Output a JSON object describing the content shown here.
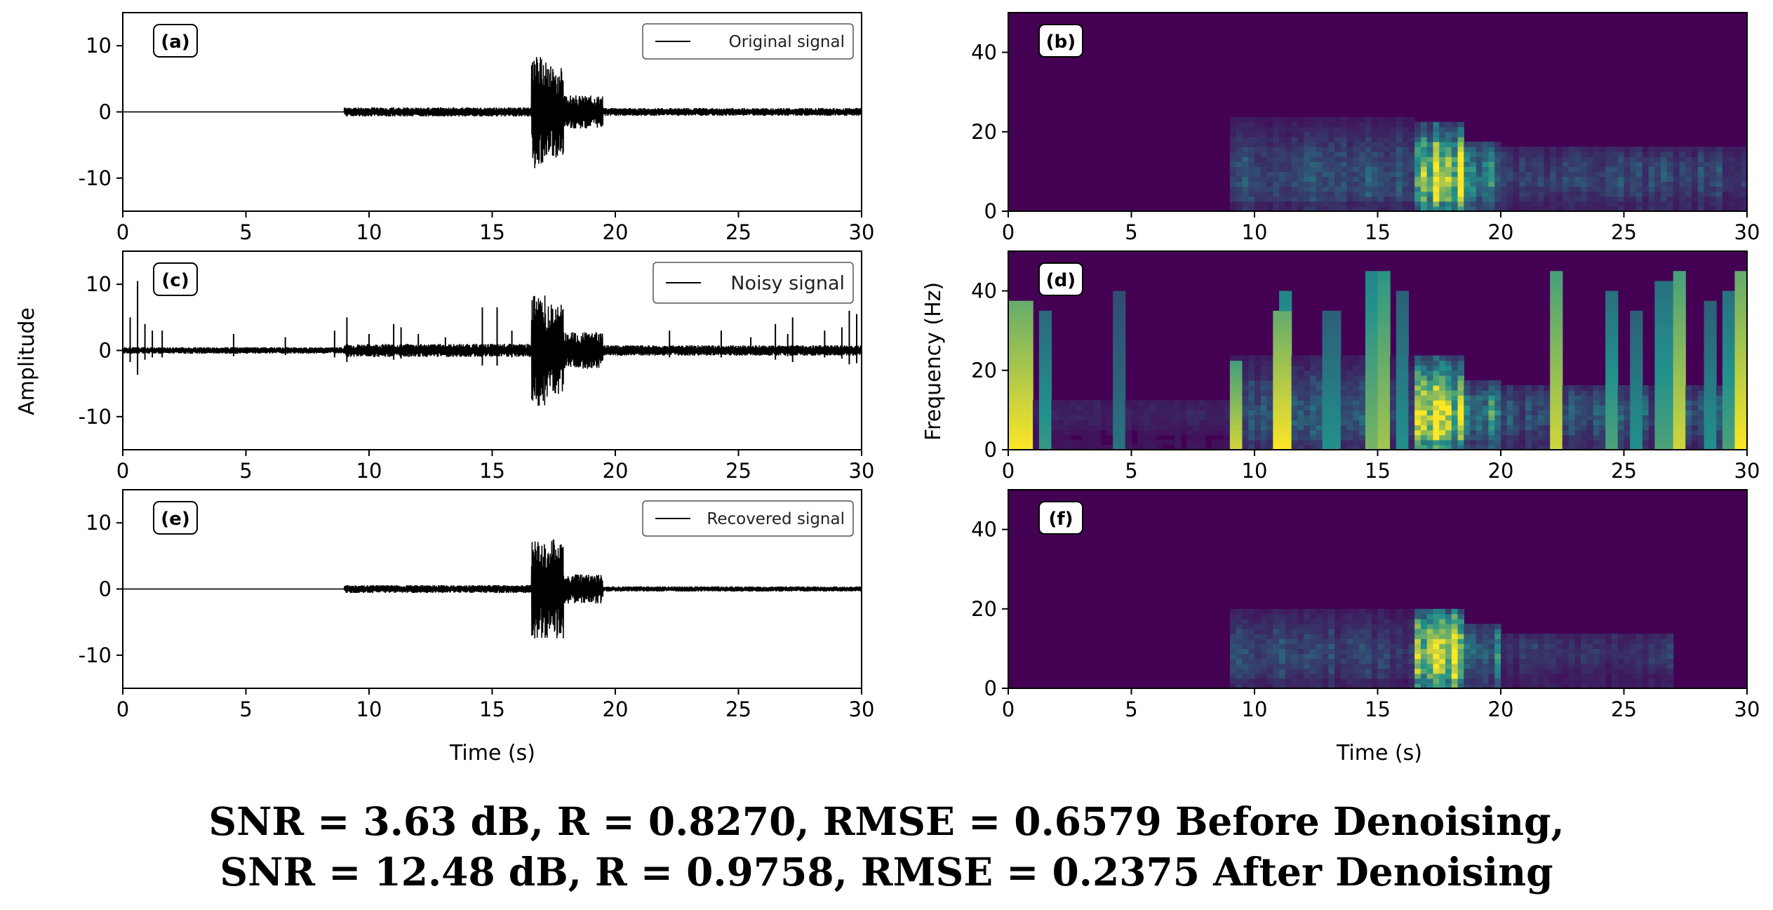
{
  "figure": {
    "ylabel_left": "Amplitude",
    "ylabel_right": "Frequency (Hz)",
    "xlabel": "Time (s)",
    "colors": {
      "signal": "#000000",
      "low": "#440154",
      "mid": "#21918c",
      "high": "#fde725"
    }
  },
  "chart_data": [
    {
      "id": "a",
      "type": "line",
      "panel_label": "(a)",
      "legend": "Original signal",
      "legend_position": "upper-right",
      "xlim": [
        0,
        30
      ],
      "ylim": [
        -15,
        15
      ],
      "xticks": [
        0,
        5,
        10,
        15,
        20,
        25,
        30
      ],
      "yticks": [
        -10,
        0,
        10
      ],
      "series": [
        {
          "name": "Original signal",
          "color": "#000000",
          "bursts": [
            {
              "t0": 9.0,
              "t1": 16.6,
              "amp": 0.7,
              "seed": 11
            },
            {
              "t0": 16.6,
              "t1": 17.2,
              "amp": 8.5,
              "seed": 12
            },
            {
              "t0": 17.2,
              "t1": 17.9,
              "amp": 7.0,
              "seed": 13
            },
            {
              "t0": 17.9,
              "t1": 19.5,
              "amp": 2.5,
              "seed": 14
            },
            {
              "t0": 19.5,
              "t1": 30.0,
              "amp": 0.6,
              "seed": 15
            }
          ],
          "spikes": []
        }
      ]
    },
    {
      "id": "b",
      "type": "heatmap",
      "panel_label": "(b)",
      "xlim": [
        0,
        30
      ],
      "ylim": [
        0,
        50
      ],
      "xticks": [
        0,
        5,
        10,
        15,
        20,
        25,
        30
      ],
      "yticks": [
        0,
        20,
        40
      ],
      "events": [
        {
          "t0": 9.0,
          "t1": 16.6,
          "fmax": 24,
          "level": 0.28,
          "seed": 21
        },
        {
          "t0": 16.6,
          "t1": 18.5,
          "fmax": 22,
          "level": 0.95,
          "seed": 22
        },
        {
          "t0": 18.5,
          "t1": 20.0,
          "fmax": 18,
          "level": 0.45,
          "seed": 23
        },
        {
          "t0": 20.0,
          "t1": 30.0,
          "fmax": 16,
          "level": 0.25,
          "seed": 24
        }
      ],
      "stripes": []
    },
    {
      "id": "c",
      "type": "line",
      "panel_label": "(c)",
      "legend": "Noisy signal",
      "legend_position": "upper-right",
      "xlim": [
        0,
        30
      ],
      "ylim": [
        -15,
        15
      ],
      "xticks": [
        0,
        5,
        10,
        15,
        20,
        25,
        30
      ],
      "yticks": [
        -10,
        0,
        10
      ],
      "series": [
        {
          "name": "Noisy signal",
          "color": "#000000",
          "bursts": [
            {
              "t0": 0.0,
              "t1": 9.0,
              "amp": 0.5,
              "seed": 31
            },
            {
              "t0": 9.0,
              "t1": 16.6,
              "amp": 1.0,
              "seed": 32
            },
            {
              "t0": 16.6,
              "t1": 17.2,
              "amp": 8.5,
              "seed": 33
            },
            {
              "t0": 17.2,
              "t1": 17.9,
              "amp": 7.0,
              "seed": 34
            },
            {
              "t0": 17.9,
              "t1": 19.5,
              "amp": 2.8,
              "seed": 35
            },
            {
              "t0": 19.5,
              "t1": 30.0,
              "amp": 0.8,
              "seed": 36
            }
          ],
          "spikes": [
            [
              0.3,
              5
            ],
            [
              0.6,
              10.5
            ],
            [
              0.9,
              4
            ],
            [
              1.2,
              3
            ],
            [
              1.6,
              3
            ],
            [
              4.5,
              2.5
            ],
            [
              6.6,
              2
            ],
            [
              8.6,
              3
            ],
            [
              9.1,
              5
            ],
            [
              10.0,
              2.5
            ],
            [
              11.0,
              4
            ],
            [
              11.3,
              3.5
            ],
            [
              12.0,
              2.5
            ],
            [
              13.1,
              2
            ],
            [
              14.6,
              6.5
            ],
            [
              15.2,
              6.5
            ],
            [
              15.8,
              3
            ],
            [
              22.2,
              3
            ],
            [
              24.3,
              3
            ],
            [
              25.5,
              2
            ],
            [
              26.5,
              4
            ],
            [
              27.0,
              2.5
            ],
            [
              27.2,
              5
            ],
            [
              28.5,
              3
            ],
            [
              29.2,
              3.5
            ],
            [
              29.5,
              6
            ],
            [
              29.8,
              5.5
            ]
          ]
        }
      ]
    },
    {
      "id": "d",
      "type": "heatmap",
      "panel_label": "(d)",
      "xlim": [
        0,
        30
      ],
      "ylim": [
        0,
        50
      ],
      "xticks": [
        0,
        5,
        10,
        15,
        20,
        25,
        30
      ],
      "yticks": [
        0,
        20,
        40
      ],
      "events": [
        {
          "t0": 0.0,
          "t1": 9.0,
          "fmax": 12,
          "level": 0.12,
          "seed": 41
        },
        {
          "t0": 9.0,
          "t1": 16.6,
          "fmax": 24,
          "level": 0.32,
          "seed": 42
        },
        {
          "t0": 16.6,
          "t1": 18.5,
          "fmax": 24,
          "level": 0.95,
          "seed": 43
        },
        {
          "t0": 18.5,
          "t1": 20.0,
          "fmax": 18,
          "level": 0.5,
          "seed": 44
        },
        {
          "t0": 20.0,
          "t1": 30.0,
          "fmax": 16,
          "level": 0.3,
          "seed": 45
        }
      ],
      "stripes": [
        [
          0.1,
          0.8,
          38,
          1.0
        ],
        [
          1.3,
          0.3,
          35,
          0.55
        ],
        [
          4.5,
          0.2,
          40,
          0.4
        ],
        [
          9.1,
          0.3,
          22,
          0.9
        ],
        [
          10.9,
          0.4,
          35,
          1.0
        ],
        [
          11.2,
          0.3,
          40,
          0.7
        ],
        [
          13.0,
          0.3,
          35,
          0.5
        ],
        [
          14.6,
          0.3,
          45,
          0.7
        ],
        [
          15.2,
          0.25,
          45,
          0.8
        ],
        [
          15.8,
          0.2,
          40,
          0.5
        ],
        [
          22.2,
          0.3,
          45,
          0.9
        ],
        [
          24.3,
          0.3,
          40,
          0.6
        ],
        [
          25.5,
          0.2,
          35,
          0.5
        ],
        [
          26.5,
          0.3,
          42,
          0.6
        ],
        [
          27.2,
          0.3,
          45,
          0.9
        ],
        [
          28.5,
          0.2,
          38,
          0.5
        ],
        [
          29.2,
          0.3,
          40,
          0.6
        ],
        [
          29.6,
          0.4,
          45,
          1.0
        ]
      ]
    },
    {
      "id": "e",
      "type": "line",
      "panel_label": "(e)",
      "legend": "Recovered signal",
      "legend_position": "upper-right",
      "xlim": [
        0,
        30
      ],
      "ylim": [
        -15,
        15
      ],
      "xticks": [
        0,
        5,
        10,
        15,
        20,
        25,
        30
      ],
      "yticks": [
        -10,
        0,
        10
      ],
      "series": [
        {
          "name": "Recovered signal",
          "color": "#000000",
          "bursts": [
            {
              "t0": 9.0,
              "t1": 16.6,
              "amp": 0.6,
              "seed": 51
            },
            {
              "t0": 16.6,
              "t1": 17.2,
              "amp": 7.5,
              "seed": 52
            },
            {
              "t0": 17.2,
              "t1": 17.9,
              "amp": 7.5,
              "seed": 53
            },
            {
              "t0": 17.9,
              "t1": 19.5,
              "amp": 2.2,
              "seed": 54
            },
            {
              "t0": 19.5,
              "t1": 30.0,
              "amp": 0.4,
              "seed": 55
            }
          ],
          "spikes": []
        }
      ]
    },
    {
      "id": "f",
      "type": "heatmap",
      "panel_label": "(f)",
      "xlim": [
        0,
        30
      ],
      "ylim": [
        0,
        50
      ],
      "xticks": [
        0,
        5,
        10,
        15,
        20,
        25,
        30
      ],
      "yticks": [
        0,
        20,
        40
      ],
      "events": [
        {
          "t0": 9.0,
          "t1": 16.6,
          "fmax": 20,
          "level": 0.24,
          "seed": 61
        },
        {
          "t0": 16.6,
          "t1": 18.5,
          "fmax": 20,
          "level": 0.95,
          "seed": 62
        },
        {
          "t0": 18.5,
          "t1": 20.0,
          "fmax": 16,
          "level": 0.45,
          "seed": 63
        },
        {
          "t0": 20.0,
          "t1": 27.0,
          "fmax": 14,
          "level": 0.2,
          "seed": 64
        }
      ],
      "stripes": []
    }
  ],
  "caption": {
    "line1": "SNR = 3.63 dB, R = 0.8270, RMSE = 0.6579 Before Denoising,",
    "line2": "SNR = 12.48 dB, R = 0.9758, RMSE = 0.2375 After Denoising"
  }
}
